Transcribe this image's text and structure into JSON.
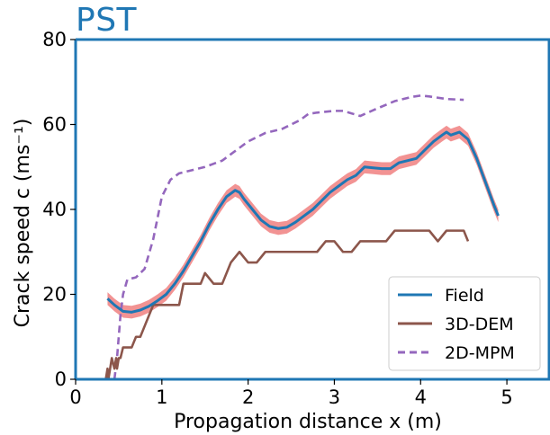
{
  "header": {
    "title": "PST"
  },
  "chart_data": {
    "type": "line",
    "title": "PST",
    "xlabel": "Propagation distance x (m)",
    "ylabel": "Crack speed c (ms⁻¹)",
    "xlim": [
      0,
      5.5
    ],
    "ylim": [
      0,
      80
    ],
    "xticks": [
      "0",
      "1",
      "2",
      "3",
      "4",
      "5"
    ],
    "yticks": [
      "0",
      "20",
      "40",
      "60",
      "80"
    ],
    "grid": false,
    "legend_position": "bottom-right",
    "series": [
      {
        "name": "Field",
        "color": "#1f77b4",
        "band_color": "#f08080",
        "style": "solid",
        "x": [
          0.37,
          0.45,
          0.55,
          0.65,
          0.75,
          0.85,
          0.95,
          1.05,
          1.15,
          1.25,
          1.35,
          1.45,
          1.55,
          1.65,
          1.75,
          1.85,
          1.9,
          1.95,
          2.05,
          2.15,
          2.25,
          2.35,
          2.45,
          2.55,
          2.65,
          2.75,
          2.85,
          2.95,
          3.05,
          3.15,
          3.25,
          3.35,
          3.45,
          3.55,
          3.65,
          3.75,
          3.85,
          3.95,
          4.05,
          4.15,
          4.25,
          4.3,
          4.35,
          4.45,
          4.55,
          4.65,
          4.75,
          4.85,
          4.9
        ],
        "values": [
          19,
          17.5,
          16,
          15.8,
          16.3,
          17.2,
          18.5,
          20,
          22.5,
          25.5,
          29,
          32.5,
          36.5,
          40,
          43,
          44.5,
          44,
          42.5,
          40,
          37.5,
          36,
          35.5,
          35.8,
          37,
          38.5,
          40,
          42,
          44,
          45.5,
          47,
          48,
          50,
          49.8,
          49.6,
          49.6,
          51,
          51.5,
          52,
          54,
          56,
          57.5,
          58.2,
          57.5,
          58.2,
          56.5,
          52,
          46.5,
          41,
          38.5
        ],
        "band": 1.5
      },
      {
        "name": "3D-DEM",
        "color": "#8c564b",
        "style": "solid",
        "x": [
          0.35,
          0.37,
          0.38,
          0.4,
          0.42,
          0.45,
          0.47,
          0.48,
          0.5,
          0.52,
          0.55,
          0.6,
          0.65,
          0.7,
          0.75,
          0.8,
          0.85,
          0.9,
          1.0,
          1.1,
          1.2,
          1.25,
          1.35,
          1.45,
          1.5,
          1.6,
          1.7,
          1.8,
          1.9,
          2.0,
          2.1,
          2.2,
          2.3,
          2.5,
          2.7,
          2.8,
          2.9,
          3.0,
          3.1,
          3.2,
          3.3,
          3.4,
          3.5,
          3.6,
          3.7,
          3.8,
          3.9,
          4.0,
          4.1,
          4.2,
          4.3,
          4.4,
          4.5,
          4.55
        ],
        "values": [
          0,
          2.5,
          0,
          2.5,
          5,
          2.5,
          5,
          2.5,
          5,
          5,
          7.5,
          7.5,
          7.5,
          10,
          10,
          12.5,
          15,
          17.5,
          17.5,
          17.5,
          17.5,
          22.5,
          22.5,
          22.5,
          25,
          22.5,
          22.5,
          27.5,
          30,
          27.5,
          27.5,
          30,
          30,
          30,
          30,
          30,
          32.5,
          32.5,
          30,
          30,
          32.5,
          32.5,
          32.5,
          32.5,
          35,
          35,
          35,
          35,
          35,
          32.5,
          35,
          35,
          35,
          32.5
        ]
      },
      {
        "name": "2D-MPM",
        "color": "#9467bd",
        "style": "dashed",
        "x": [
          0.45,
          0.48,
          0.5,
          0.52,
          0.55,
          0.6,
          0.7,
          0.8,
          0.9,
          1.0,
          1.1,
          1.2,
          1.3,
          1.5,
          1.7,
          1.8,
          1.9,
          2.0,
          2.1,
          2.2,
          2.3,
          2.4,
          2.5,
          2.6,
          2.7,
          2.8,
          2.9,
          3.0,
          3.1,
          3.3,
          3.5,
          3.7,
          3.9,
          4.0,
          4.1,
          4.3,
          4.5
        ],
        "values": [
          0,
          5,
          10,
          15,
          20,
          23.5,
          24,
          26,
          33,
          43,
          47,
          48.5,
          49,
          50,
          51.5,
          53,
          54.5,
          56,
          57,
          58,
          58.5,
          59,
          60,
          61,
          62.5,
          62.8,
          63,
          63.2,
          63.2,
          62,
          63.8,
          65.5,
          66.5,
          66.8,
          66.6,
          66,
          65.8
        ]
      }
    ]
  }
}
